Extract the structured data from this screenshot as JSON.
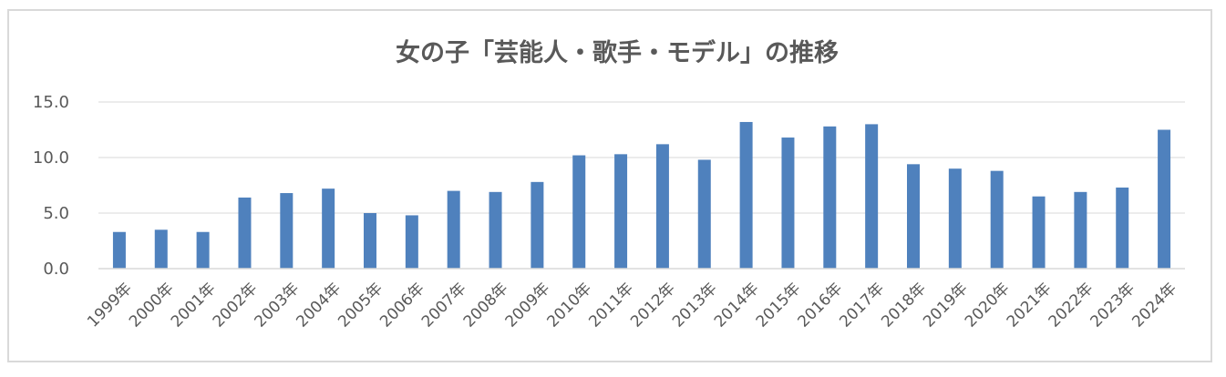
{
  "chart_data": {
    "type": "bar",
    "title": "女の子「芸能人・歌手・モデル」の推移",
    "xlabel": "",
    "ylabel": "",
    "ylim": [
      0,
      15
    ],
    "yticks": [
      "0.0",
      "5.0",
      "10.0",
      "15.0"
    ],
    "grid": true,
    "legend": "none",
    "bar_color": "#4f81bd",
    "categories": [
      "1999年",
      "2000年",
      "2001年",
      "2002年",
      "2003年",
      "2004年",
      "2005年",
      "2006年",
      "2007年",
      "2008年",
      "2009年",
      "2010年",
      "2011年",
      "2012年",
      "2013年",
      "2014年",
      "2015年",
      "2016年",
      "2017年",
      "2018年",
      "2019年",
      "2020年",
      "2021年",
      "2022年",
      "2023年",
      "2024年"
    ],
    "values": [
      3.3,
      3.5,
      3.3,
      6.4,
      6.8,
      7.2,
      5.0,
      4.8,
      7.0,
      6.9,
      7.8,
      10.2,
      10.3,
      11.2,
      9.8,
      13.2,
      11.8,
      12.8,
      13.0,
      9.4,
      9.0,
      8.8,
      6.5,
      6.9,
      7.3,
      12.5
    ]
  }
}
